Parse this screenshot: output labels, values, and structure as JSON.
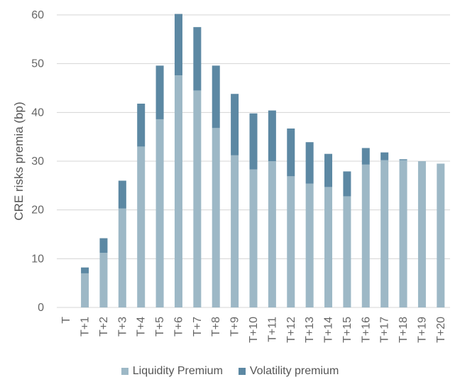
{
  "chart_data": {
    "type": "bar",
    "stacked": true,
    "title": "",
    "xlabel": "",
    "ylabel": "CRE risks premia (bp)",
    "ylim": [
      0,
      60
    ],
    "yticks": [
      0,
      10,
      20,
      30,
      40,
      50,
      60
    ],
    "grid": true,
    "legend_position": "bottom",
    "categories": [
      "T",
      "T+1",
      "T+2",
      "T+3",
      "T+4",
      "T+5",
      "T+6",
      "T+7",
      "T+8",
      "T+9",
      "T+10",
      "T+11",
      "T+12",
      "T+13",
      "T+14",
      "T+15",
      "T+16",
      "T+17",
      "T+18",
      "T+19",
      "T+20"
    ],
    "series": [
      {
        "name": "Liquidity Premium",
        "color": "#9db8c6",
        "values": [
          0,
          7,
          11.2,
          20.3,
          33,
          38.6,
          47.6,
          44.5,
          36.8,
          31.2,
          28.3,
          30,
          26.9,
          25.4,
          24.7,
          22.8,
          29.3,
          30.2,
          30.2,
          30,
          29.5
        ]
      },
      {
        "name": "Volatility premium",
        "color": "#5c88a3",
        "values": [
          0,
          1.2,
          3,
          5.7,
          8.8,
          11,
          12.6,
          13,
          12.8,
          12.6,
          11.5,
          10.4,
          9.8,
          8.5,
          6.8,
          5.1,
          3.4,
          1.6,
          0.2,
          0,
          0
        ]
      }
    ]
  }
}
